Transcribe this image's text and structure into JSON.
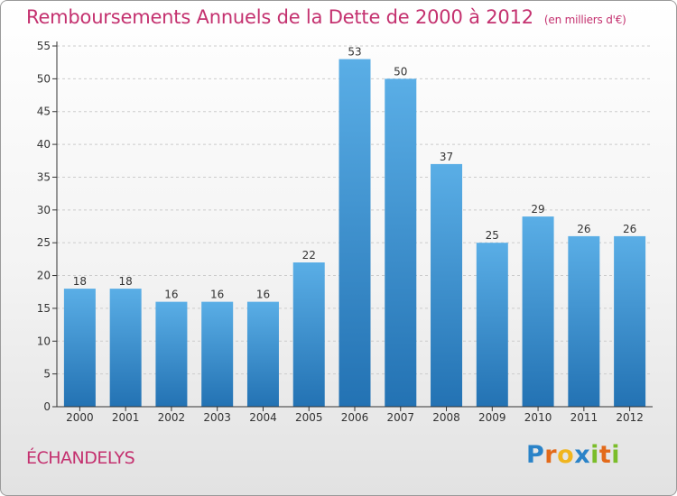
{
  "title": "Remboursements Annuels de la Dette de 2000 à 2012",
  "unit": "(en milliers d'€)",
  "commune": "ÉCHANDELYS",
  "logo": {
    "letters": [
      "P",
      "r",
      "o",
      "x",
      "i",
      "t",
      "i"
    ],
    "colors": [
      "#2a83c8",
      "#e36a1a",
      "#f0b51e",
      "#2a83c8",
      "#7bbd2a",
      "#e36a1a",
      "#7bbd2a"
    ]
  },
  "colors": {
    "bar_top": "#5aaee6",
    "bar_bottom": "#2372b3",
    "title": "#c4316f",
    "grid": "#cccccc",
    "axis": "#333333"
  },
  "chart_data": {
    "type": "bar",
    "categories": [
      "2000",
      "2001",
      "2002",
      "2003",
      "2004",
      "2005",
      "2006",
      "2007",
      "2008",
      "2009",
      "2010",
      "2011",
      "2012"
    ],
    "values": [
      18,
      18,
      16,
      16,
      16,
      22,
      53,
      50,
      37,
      25,
      29,
      26,
      26
    ],
    "ylim": [
      0,
      55
    ],
    "yticks": [
      0,
      5,
      10,
      15,
      20,
      25,
      30,
      35,
      40,
      45,
      50,
      55
    ],
    "grid": true,
    "data_labels": true
  }
}
